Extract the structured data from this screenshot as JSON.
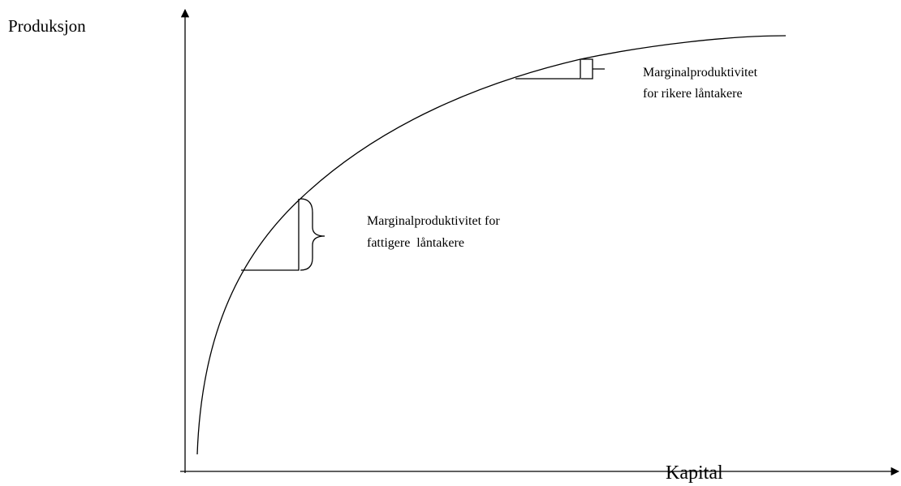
{
  "y_axis_label": "Produksjon",
  "x_axis_label": "Kapital",
  "annotations": [
    {
      "lines": [
        "Marginalproduktivitet",
        "for rikere låntakere"
      ]
    },
    {
      "lines": [
        "Marginalproduktivitet for",
        "fattigere  låntakere"
      ]
    }
  ]
}
